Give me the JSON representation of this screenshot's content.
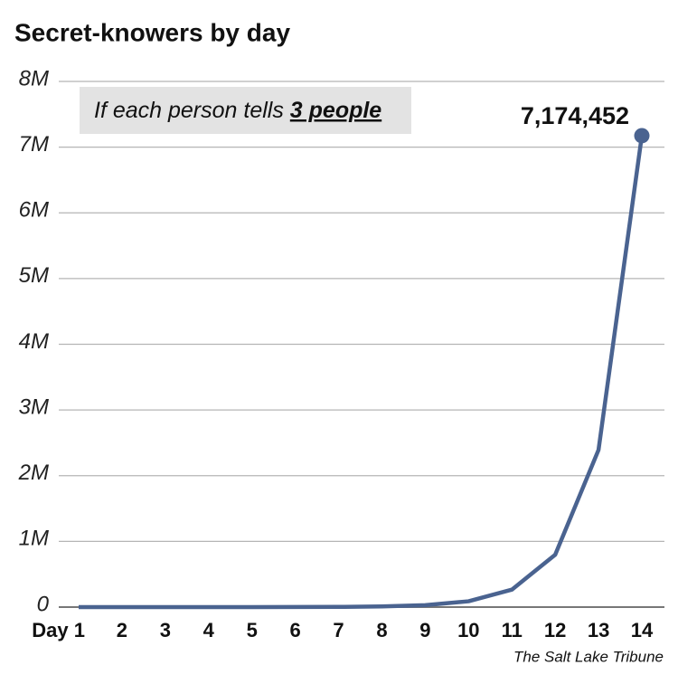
{
  "chart_data": {
    "type": "line",
    "title": "Secret-knowers by day",
    "note": {
      "text": "If each person tells",
      "emphasis": "3 people"
    },
    "source": "The Salt Lake Tribune",
    "categories": [
      "Day 1",
      "2",
      "3",
      "4",
      "5",
      "6",
      "7",
      "8",
      "9",
      "10",
      "11",
      "12",
      "13",
      "14"
    ],
    "values": [
      3,
      12,
      39,
      120,
      363,
      1092,
      3279,
      9840,
      29523,
      88572,
      265719,
      797160,
      2391483,
      7174452
    ],
    "value_labels": [
      null,
      null,
      null,
      null,
      null,
      null,
      null,
      null,
      null,
      null,
      null,
      null,
      null,
      "7,174,452"
    ],
    "color": "#4a6390",
    "ylim": [
      0,
      8000000
    ],
    "yticks": [
      0,
      {
        "value": 1000000,
        "label": "1M"
      },
      {
        "value": 2000000,
        "label": "2M"
      },
      {
        "value": 3000000,
        "label": "3M"
      },
      {
        "value": 4000000,
        "label": "4M"
      },
      {
        "value": 5000000,
        "label": "5M"
      },
      {
        "value": 6000000,
        "label": "6M"
      },
      {
        "value": 7000000,
        "label": "7M"
      },
      {
        "value": 8000000,
        "label": "8M"
      }
    ],
    "grid": true
  }
}
